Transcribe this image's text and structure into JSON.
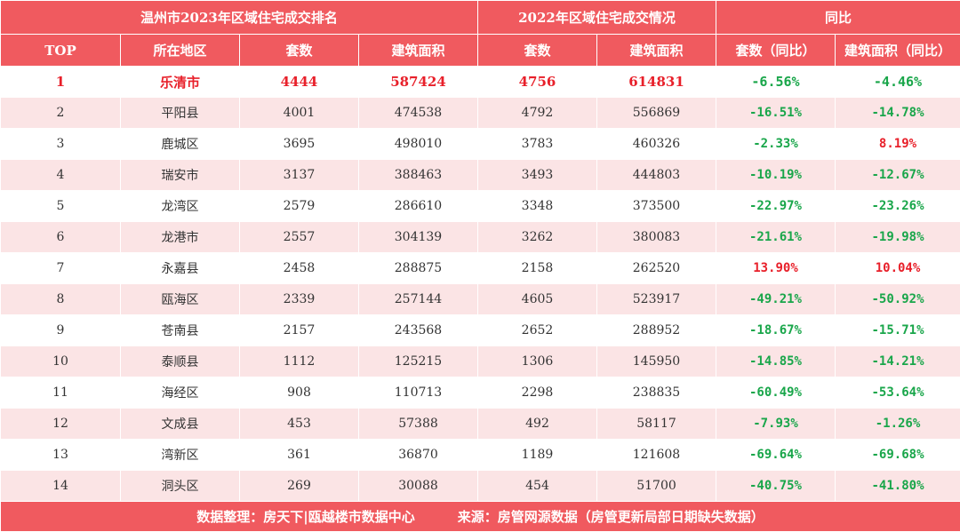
{
  "header": {
    "group_2023": "温州市2023年区域住宅成交排名",
    "group_2022": "2022年区域住宅成交情况",
    "group_yoy": "同比",
    "columns": [
      "TOP",
      "所在地区",
      "套数",
      "建筑面积",
      "套数",
      "建筑面积",
      "套数（同比）",
      "建筑面积（同比）"
    ]
  },
  "chart_data": {
    "type": "table",
    "title": "温州市2023年区域住宅成交排名",
    "rows": [
      {
        "rank": "1",
        "region": "乐清市",
        "units_2023": "4444",
        "area_2023": "587424",
        "units_2022": "4756",
        "area_2022": "614831",
        "units_yoy": "-6.56%",
        "area_yoy": "-4.46%"
      },
      {
        "rank": "2",
        "region": "平阳县",
        "units_2023": "4001",
        "area_2023": "474538",
        "units_2022": "4792",
        "area_2022": "556869",
        "units_yoy": "-16.51%",
        "area_yoy": "-14.78%"
      },
      {
        "rank": "3",
        "region": "鹿城区",
        "units_2023": "3695",
        "area_2023": "498010",
        "units_2022": "3783",
        "area_2022": "460326",
        "units_yoy": "-2.33%",
        "area_yoy": "8.19%"
      },
      {
        "rank": "4",
        "region": "瑞安市",
        "units_2023": "3137",
        "area_2023": "388463",
        "units_2022": "3493",
        "area_2022": "444803",
        "units_yoy": "-10.19%",
        "area_yoy": "-12.67%"
      },
      {
        "rank": "5",
        "region": "龙湾区",
        "units_2023": "2579",
        "area_2023": "286610",
        "units_2022": "3348",
        "area_2022": "373500",
        "units_yoy": "-22.97%",
        "area_yoy": "-23.26%"
      },
      {
        "rank": "6",
        "region": "龙港市",
        "units_2023": "2557",
        "area_2023": "304139",
        "units_2022": "3262",
        "area_2022": "380083",
        "units_yoy": "-21.61%",
        "area_yoy": "-19.98%"
      },
      {
        "rank": "7",
        "region": "永嘉县",
        "units_2023": "2458",
        "area_2023": "288875",
        "units_2022": "2158",
        "area_2022": "262520",
        "units_yoy": "13.90%",
        "area_yoy": "10.04%"
      },
      {
        "rank": "8",
        "region": "瓯海区",
        "units_2023": "2339",
        "area_2023": "257144",
        "units_2022": "4605",
        "area_2022": "523917",
        "units_yoy": "-49.21%",
        "area_yoy": "-50.92%"
      },
      {
        "rank": "9",
        "region": "苍南县",
        "units_2023": "2157",
        "area_2023": "243568",
        "units_2022": "2652",
        "area_2022": "288952",
        "units_yoy": "-18.67%",
        "area_yoy": "-15.71%"
      },
      {
        "rank": "10",
        "region": "泰顺县",
        "units_2023": "1112",
        "area_2023": "125215",
        "units_2022": "1306",
        "area_2022": "145950",
        "units_yoy": "-14.85%",
        "area_yoy": "-14.21%"
      },
      {
        "rank": "11",
        "region": "海经区",
        "units_2023": "908",
        "area_2023": "110713",
        "units_2022": "2298",
        "area_2022": "238835",
        "units_yoy": "-60.49%",
        "area_yoy": "-53.64%"
      },
      {
        "rank": "12",
        "region": "文成县",
        "units_2023": "453",
        "area_2023": "57388",
        "units_2022": "492",
        "area_2022": "58117",
        "units_yoy": "-7.93%",
        "area_yoy": "-1.26%"
      },
      {
        "rank": "13",
        "region": "湾新区",
        "units_2023": "361",
        "area_2023": "36870",
        "units_2022": "1189",
        "area_2022": "121608",
        "units_yoy": "-69.64%",
        "area_yoy": "-69.68%"
      },
      {
        "rank": "14",
        "region": "洞头区",
        "units_2023": "269",
        "area_2023": "30088",
        "units_2022": "454",
        "area_2022": "51700",
        "units_yoy": "-40.75%",
        "area_yoy": "-41.80%"
      }
    ]
  },
  "footer": {
    "compiled_by": "数据整理：房天下|瓯越楼市数据中心",
    "source": "来源：房管网源数据（房管更新局部日期缺失数据）"
  },
  "colors": {
    "header_bg": "#f05a5f",
    "stripe_bg": "#fbe4e5",
    "decline": "#19a64a",
    "increase": "#e8202a"
  }
}
